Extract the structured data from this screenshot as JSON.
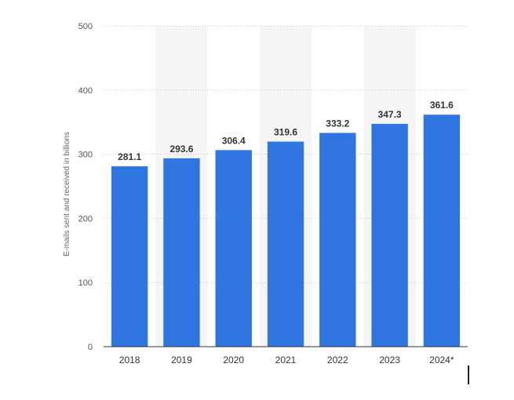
{
  "chart_data": {
    "type": "bar",
    "categories": [
      "2018",
      "2019",
      "2020",
      "2021",
      "2022",
      "2023",
      "2024*"
    ],
    "values": [
      281.1,
      293.6,
      306.4,
      319.6,
      333.2,
      347.3,
      361.6
    ],
    "value_labels": [
      "281.1",
      "293.6",
      "306.4",
      "319.6",
      "333.2",
      "347.3",
      "361.6"
    ],
    "title": "",
    "xlabel": "",
    "ylabel": "E-mails sent and received in billions",
    "ylim": [
      0,
      500
    ],
    "yticks": [
      "0",
      "100",
      "200",
      "300",
      "400",
      "500"
    ],
    "grid": true,
    "bar_color": "#2f76e0",
    "band_color": "#f5f5f5",
    "grid_color": "#cccccc"
  }
}
